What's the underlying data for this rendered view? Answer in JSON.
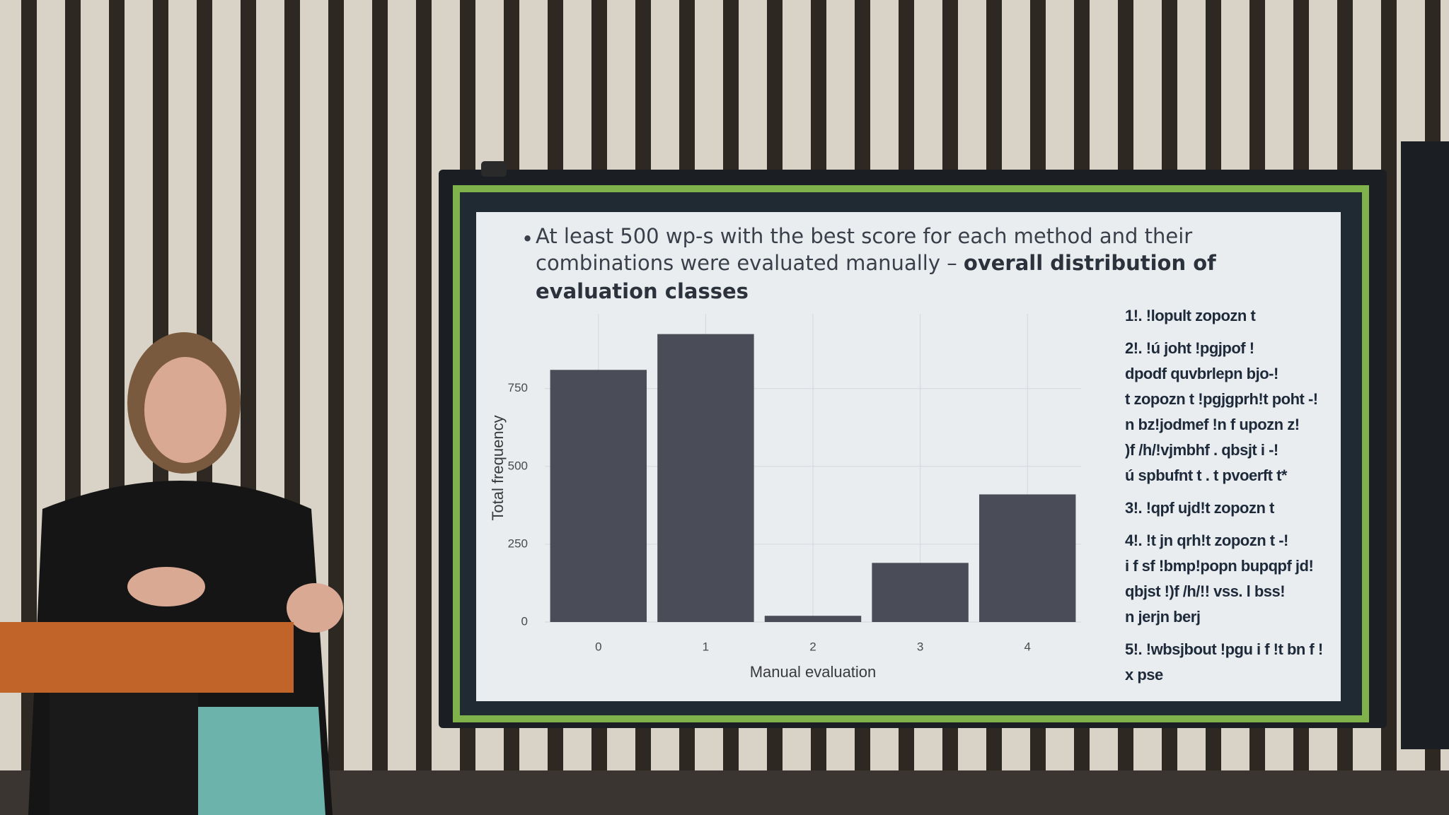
{
  "slide": {
    "bullet": [
      "At least 500 wp-s with the best score for each method and their",
      "combinations  were evaluated manually – ",
      "overall distribution of",
      "evaluation classes"
    ],
    "legend": [
      [
        "1!. !lopult zopozn t"
      ],
      [
        "2!. !ú joht !pgjpof !",
        "dpodf quvbrlepn bjo-!",
        "t zopozn t !pgjgprh!t poht -!",
        "n bz!jodmef !n f upozn z!",
        ")f /h/!vjmbhf . qbsjt i -!",
        "ú spbufnt t . t pvoerft t*"
      ],
      [
        "3!. !qpf ujd!t zopozn t"
      ],
      [
        "4!. !t jn qrh!t zopozn t -!",
        "i f sf !bmp!popn bupqpf jd!",
        "qbjst !)f /h/!! vss. l bss!",
        "n jerjn berj"
      ],
      [
        "5!. !wbsjbout !pgu i f !t bn f !",
        "x pse"
      ]
    ]
  },
  "chart_data": {
    "type": "bar",
    "x_label": "Manual evaluation",
    "y_label": "Total frequency",
    "categories": [
      "0",
      "1",
      "2",
      "3",
      "4"
    ],
    "values": [
      810,
      925,
      20,
      190,
      410
    ],
    "color": "#4a4d57",
    "ylim": [
      0,
      990
    ],
    "yticks": [
      0,
      250,
      500,
      750
    ],
    "grid": true
  }
}
